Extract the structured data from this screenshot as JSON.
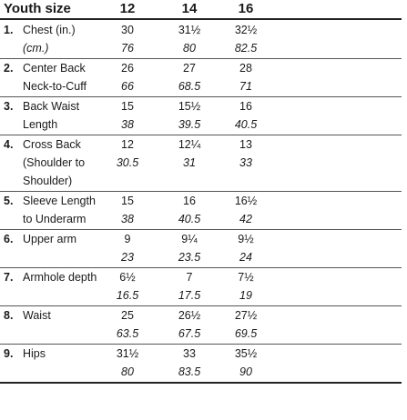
{
  "table": {
    "header": [
      "Youth size",
      "12",
      "14",
      "16"
    ],
    "rows": [
      {
        "number": "1.",
        "label": [
          "Chest (in.)",
          "(cm.)"
        ],
        "values": [
          [
            "30",
            "76"
          ],
          [
            "31½",
            "80"
          ],
          [
            "32½",
            "82.5"
          ]
        ]
      },
      {
        "number": "2.",
        "label": [
          "Center Back",
          "Neck-to-Cuff"
        ],
        "values": [
          [
            "26",
            "66"
          ],
          [
            "27",
            "68.5"
          ],
          [
            "28",
            "71"
          ]
        ]
      },
      {
        "number": "3.",
        "label": [
          "Back Waist",
          "Length"
        ],
        "values": [
          [
            "15",
            "38"
          ],
          [
            "15½",
            "39.5"
          ],
          [
            "16",
            "40.5"
          ]
        ]
      },
      {
        "number": "4.",
        "label": [
          "Cross Back",
          "(Shoulder to",
          "Shoulder)"
        ],
        "values": [
          [
            "12",
            "30.5"
          ],
          [
            "12¼",
            "31"
          ],
          [
            "13",
            "33"
          ]
        ]
      },
      {
        "number": "5.",
        "label": [
          "Sleeve Length",
          "to Underarm"
        ],
        "values": [
          [
            "15",
            "38"
          ],
          [
            "16",
            "40.5"
          ],
          [
            "16½",
            "42"
          ]
        ]
      },
      {
        "number": "6.",
        "label": [
          "Upper arm"
        ],
        "values": [
          [
            "9",
            "23"
          ],
          [
            "9¼",
            "23.5"
          ],
          [
            "9½",
            "24"
          ]
        ]
      },
      {
        "number": "7.",
        "label": [
          "Armhole depth"
        ],
        "values": [
          [
            "6½",
            "16.5"
          ],
          [
            "7",
            "17.5"
          ],
          [
            "7½",
            "19"
          ]
        ]
      },
      {
        "number": "8.",
        "label": [
          "Waist"
        ],
        "values": [
          [
            "25",
            "63.5"
          ],
          [
            "26½",
            "67.5"
          ],
          [
            "27½",
            "69.5"
          ]
        ]
      },
      {
        "number": "9.",
        "label": [
          "Hips"
        ],
        "values": [
          [
            "31½",
            "80"
          ],
          [
            "33",
            "83.5"
          ],
          [
            "35½",
            "90"
          ]
        ]
      }
    ]
  }
}
